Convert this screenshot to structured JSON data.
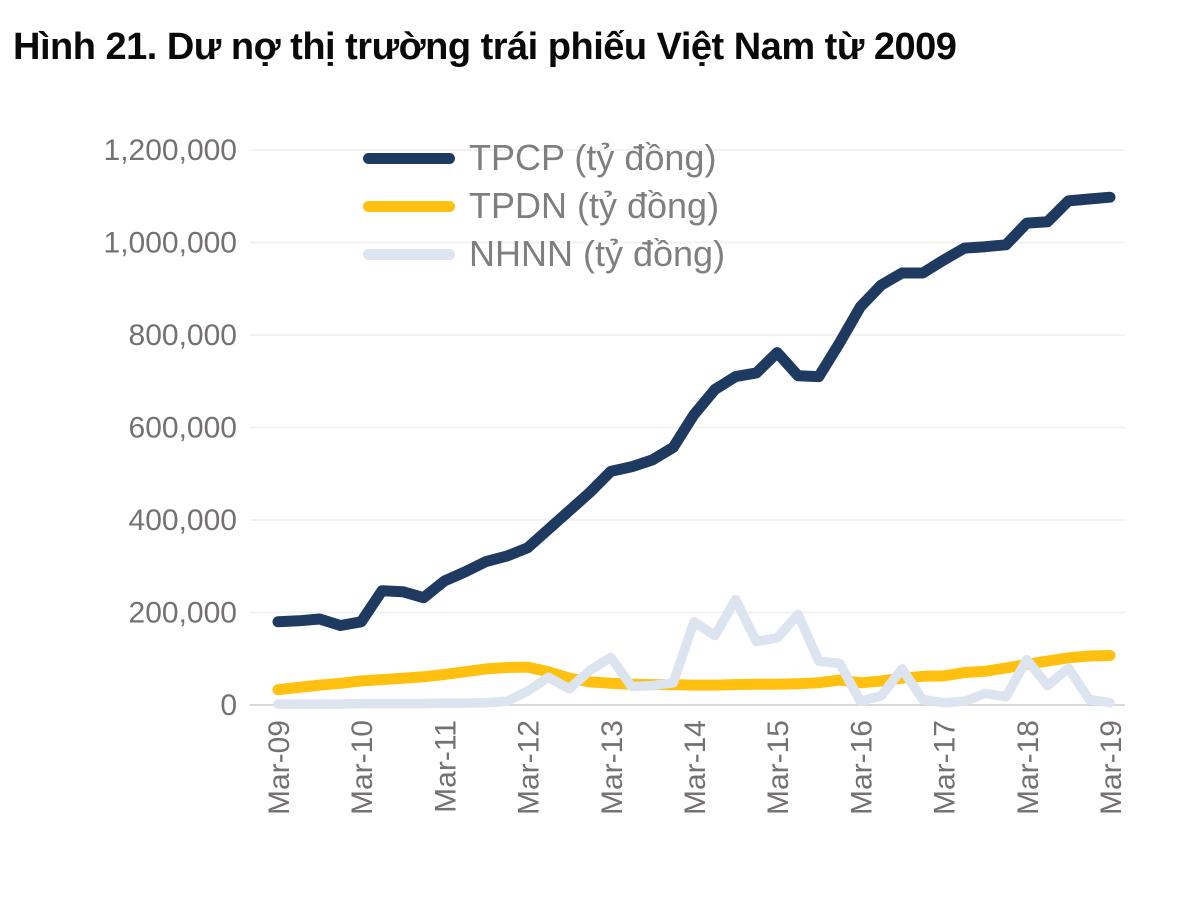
{
  "title": "Hình 21. Dư nợ thị trường trái phiếu Việt Nam từ 2009",
  "colors": {
    "tpcp_line": "#1f3a60",
    "tpdn_line": "#ffc010",
    "nhnn_line": "#dce4f0",
    "axis_text": "#767171",
    "legend_text": "#7f7f7f",
    "gridline": "#f2f2f2",
    "axis_line": "#d9d9d9",
    "title_text": "#0a0a0a"
  },
  "chart_data": {
    "type": "line",
    "title": "Hình 21. Dư nợ thị trường trái phiếu Việt Nam từ 2009",
    "xlabel": "",
    "ylabel": "",
    "ylim": [
      0,
      1200000
    ],
    "y_ticks": [
      0,
      200000,
      400000,
      600000,
      800000,
      1000000,
      1200000
    ],
    "y_tick_format": "thousands-comma",
    "x_tick_labels": [
      "Mar-09",
      "Mar-10",
      "Mar-11",
      "Mar-12",
      "Mar-13",
      "Mar-14",
      "Mar-15",
      "Mar-16",
      "Mar-17",
      "Mar-18",
      "Mar-19"
    ],
    "x_interval": "quarterly",
    "x_start": "Mar-09",
    "x_end": "Mar-19",
    "points_per_year": 4,
    "grid": "horizontal-light",
    "legend_position": "top-left-inside",
    "series": [
      {
        "name": "TPCP (tỷ đồng)",
        "color": "#1f3a60",
        "values": [
          180000,
          182000,
          186000,
          172000,
          180000,
          247000,
          245000,
          232000,
          268000,
          288000,
          310000,
          322000,
          340000,
          380000,
          420000,
          460000,
          505000,
          515000,
          530000,
          557000,
          628000,
          682000,
          710000,
          718000,
          762000,
          712000,
          710000,
          783000,
          861000,
          908000,
          934000,
          934000,
          962000,
          988000,
          991000,
          995000,
          1042000,
          1045000,
          1090000,
          1094000,
          1098000
        ]
      },
      {
        "name": "TPDN (tỷ đồng)",
        "color": "#ffc010",
        "values": [
          33000,
          38000,
          43000,
          47000,
          52000,
          55000,
          58000,
          61000,
          66000,
          72000,
          78000,
          81000,
          82000,
          72000,
          58000,
          50000,
          47000,
          45000,
          44000,
          44000,
          43000,
          43000,
          44000,
          45000,
          45000,
          46000,
          48000,
          54000,
          48000,
          52000,
          58000,
          62000,
          63000,
          70000,
          73000,
          80000,
          88000,
          95000,
          102000,
          106000,
          107000
        ]
      },
      {
        "name": "NHNN (tỷ đồng)",
        "color": "#dce4f0",
        "values": [
          2000,
          2000,
          2000,
          2000,
          3000,
          3000,
          3000,
          3000,
          4000,
          4000,
          5000,
          8000,
          30000,
          60000,
          35000,
          75000,
          103000,
          40000,
          42000,
          48000,
          180000,
          150000,
          228000,
          137000,
          145000,
          196000,
          95000,
          90000,
          8000,
          20000,
          78000,
          12000,
          5000,
          8000,
          25000,
          18000,
          98000,
          42000,
          80000,
          12000,
          5000
        ]
      }
    ]
  }
}
